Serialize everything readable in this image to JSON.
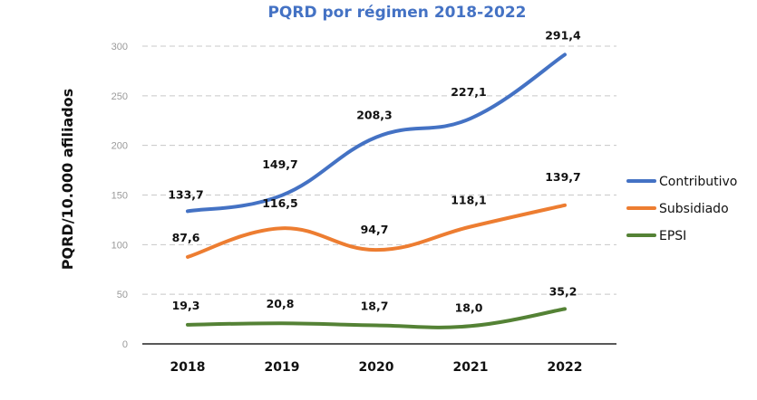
{
  "chart_data": {
    "type": "line",
    "title": "PQRD por régimen 2018-2022",
    "xlabel": "",
    "ylabel": "PQRD/10.000 afiliados",
    "categories": [
      "2018",
      "2019",
      "2020",
      "2021",
      "2022"
    ],
    "ylim": [
      0,
      300
    ],
    "yticks": [
      "0",
      "50",
      "100",
      "150",
      "200",
      "250",
      "300"
    ],
    "grid": true,
    "legend_position": "right",
    "series": [
      {
        "name": "Contributivo",
        "color": "#4472c4",
        "values": [
          133.7,
          149.7,
          208.3,
          227.1,
          291.4
        ],
        "labels": [
          "133,7",
          "149,7",
          "208,3",
          "227,1",
          "291,4"
        ]
      },
      {
        "name": "Subsidiado",
        "color": "#ed7d31",
        "values": [
          87.6,
          116.5,
          94.7,
          118.1,
          139.7
        ],
        "labels": [
          "87,6",
          "116,5",
          "94,7",
          "118,1",
          "139,7"
        ]
      },
      {
        "name": "EPSI",
        "color": "#548235",
        "values": [
          19.3,
          20.8,
          18.7,
          18.0,
          35.2
        ],
        "labels": [
          "19,3",
          "20,8",
          "18,7",
          "18,0",
          "35,2"
        ]
      }
    ]
  }
}
